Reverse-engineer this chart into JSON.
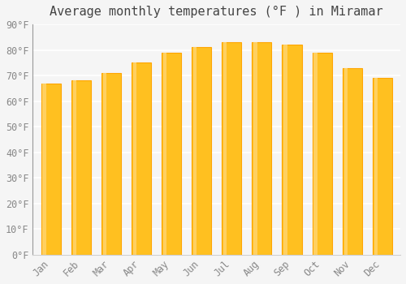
{
  "title": "Average monthly temperatures (°F ) in Miramar",
  "months": [
    "Jan",
    "Feb",
    "Mar",
    "Apr",
    "May",
    "Jun",
    "Jul",
    "Aug",
    "Sep",
    "Oct",
    "Nov",
    "Dec"
  ],
  "values": [
    67,
    68,
    71,
    75,
    79,
    81,
    83,
    83,
    82,
    79,
    73,
    69
  ],
  "bar_color_main": "#FFC020",
  "bar_color_edge": "#FFA500",
  "bar_color_gradient_top": "#FFD060",
  "background_color": "#f5f5f5",
  "ylim": [
    0,
    90
  ],
  "yticks": [
    0,
    10,
    20,
    30,
    40,
    50,
    60,
    70,
    80,
    90
  ],
  "ytick_labels": [
    "0°F",
    "10°F",
    "20°F",
    "30°F",
    "40°F",
    "50°F",
    "60°F",
    "70°F",
    "80°F",
    "90°F"
  ],
  "grid_color": "#ffffff",
  "title_fontsize": 11,
  "tick_fontsize": 8.5,
  "font_family": "monospace"
}
